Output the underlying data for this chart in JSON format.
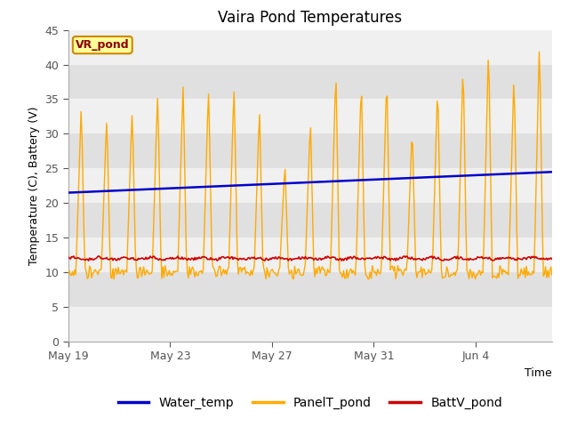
{
  "title": "Vaira Pond Temperatures",
  "xlabel": "Time",
  "ylabel": "Temperature (C), Battery (V)",
  "site_label": "VR_pond",
  "ylim": [
    0,
    45
  ],
  "yticks": [
    0,
    5,
    10,
    15,
    20,
    25,
    30,
    35,
    40,
    45
  ],
  "xtick_positions": [
    0,
    4,
    8,
    12,
    16
  ],
  "xtick_labels": [
    "May 19",
    "May 23",
    "May 27",
    "May 31",
    "Jun 4"
  ],
  "legend_labels": [
    "Water_temp",
    "PanelT_pond",
    "BattV_pond"
  ],
  "legend_colors": [
    "#0000cc",
    "#ffaa00",
    "#cc0000"
  ],
  "water_temp_color": "#0000cc",
  "panel_temp_color": "#ffaa00",
  "batt_color": "#cc0000",
  "stripe_light": "#f0f0f0",
  "stripe_dark": "#e0e0e0",
  "fig_bg": "#ffffff",
  "title_fontsize": 12,
  "label_fontsize": 9,
  "tick_fontsize": 9,
  "legend_fontsize": 10,
  "n_days": 19,
  "samples_per_day": 24
}
